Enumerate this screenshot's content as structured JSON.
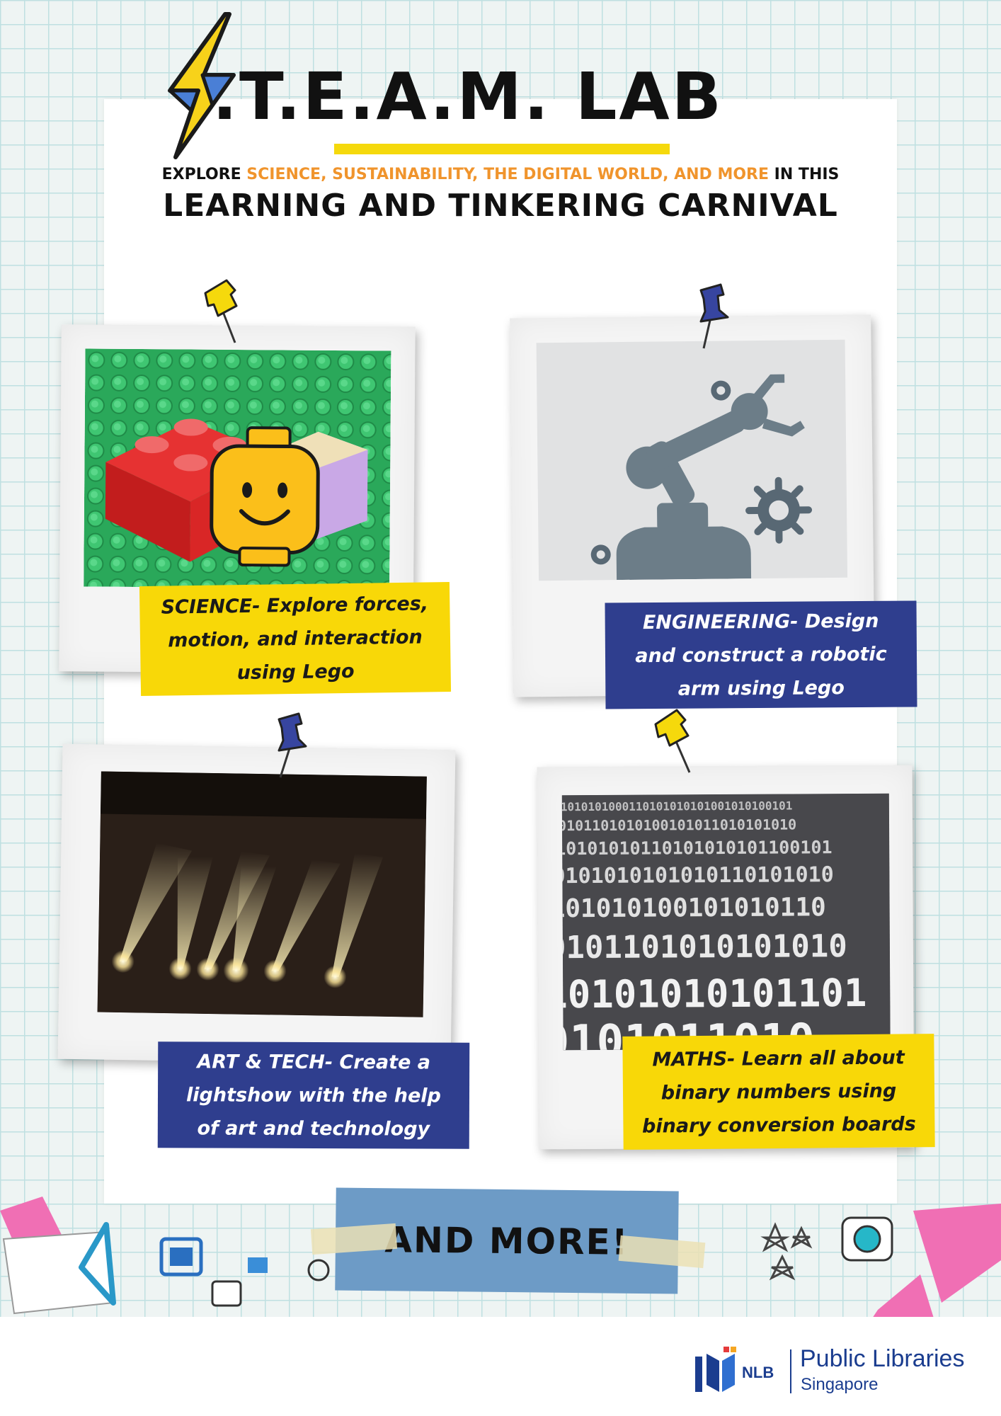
{
  "title": ".T.E.A.M. LAB",
  "tagline": {
    "prefix": "EXPLORE ",
    "highlight": "SCIENCE, SUSTAINABILITY, THE DIGITAL WORLD, AND MORE",
    "suffix": " IN THIS"
  },
  "headline": "LEARNING AND TINKERING CARNIVAL",
  "cards": [
    {
      "caption": "SCIENCE- Explore forces, motion, and interaction using Lego",
      "image": "lego-brick-and-minifigure-head",
      "pin": "yellow-pin-icon"
    },
    {
      "caption": "ENGINEERING- Design and construct a robotic arm using Lego",
      "image": "robotic-arm-with-gears",
      "pin": "blue-pin-icon"
    },
    {
      "caption": "ART & TECH- Create a lightshow with the help of art and technology",
      "image": "stage-spotlights",
      "pin": "blue-pin-icon"
    },
    {
      "caption": "MATHS- Learn all about binary numbers using binary conversion boards",
      "image": "binary-code-pattern",
      "pin": "yellow-pin-icon"
    }
  ],
  "more": "AND MORE!",
  "footer": {
    "logo_short": "NLB",
    "logo_name": "Public Libraries",
    "logo_country": "Singapore"
  },
  "colors": {
    "yellow": "#f8d808",
    "blue": "#2f3e8e",
    "orange": "#f0942c",
    "grid": "#bfe0e1",
    "more_tape": "#6d9bc6"
  }
}
